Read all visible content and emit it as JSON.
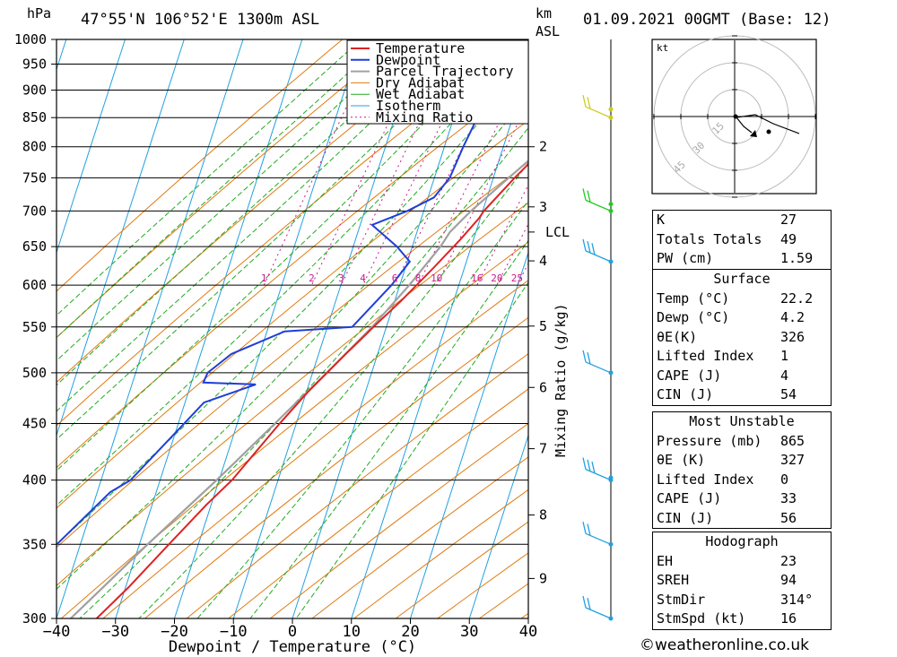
{
  "header": {
    "hpa_unit": "hPa",
    "location": "47°55'N  106°52'E  1300m  ASL",
    "km_unit": "km",
    "asl_unit": "ASL",
    "datetime": "01.09.2021  00GMT  (Base: 12)"
  },
  "chart_data": {
    "type": "line",
    "subtype": "skew-T log-P",
    "xlabel": "Dewpoint / Temperature (°C)",
    "ylabel_left": "hPa",
    "ylabel_right": "Mixing Ratio (g/kg)",
    "x_ticks": [
      -40,
      -30,
      -20,
      -10,
      0,
      10,
      20,
      30,
      40
    ],
    "xlim": [
      -40,
      40
    ],
    "pressure_levels": [
      300,
      350,
      400,
      450,
      500,
      550,
      600,
      650,
      700,
      750,
      800,
      850,
      900,
      950,
      1000
    ],
    "ylim": [
      1000,
      300
    ],
    "km_ticks": [
      {
        "km": 2,
        "p": 800
      },
      {
        "km": 3,
        "p": 706
      },
      {
        "km": 4,
        "p": 631
      },
      {
        "km": 5,
        "p": 551
      },
      {
        "km": 6,
        "p": 485
      },
      {
        "km": 7,
        "p": 427
      },
      {
        "km": 8,
        "p": 372
      },
      {
        "km": 9,
        "p": 326
      }
    ],
    "lcl_label": "LCL",
    "lcl_pressure": 670,
    "mixing_ratio_labels": [
      "1",
      "2",
      "3",
      "4",
      "6",
      "8",
      "10",
      "16",
      "20",
      "25"
    ],
    "mixing_ratio_values": [
      1,
      2,
      3,
      4,
      6,
      8,
      10,
      16,
      20,
      25
    ],
    "legend": [
      "Temperature",
      "Dewpoint",
      "Parcel Trajectory",
      "Dry Adiabat",
      "Wet Adiabat",
      "Isotherm",
      "Mixing Ratio"
    ],
    "legend_position": "top-right of plot",
    "colors": {
      "temperature": "#dd2222",
      "dewpoint": "#1f3fd8",
      "parcel": "#a0a0a0",
      "dry_adiabat": "#e07a10",
      "wet_adiabat": "#22aa22",
      "isotherm": "#22a0e0",
      "mixing_ratio": "#cc1a8a"
    },
    "series": [
      {
        "name": "Temperature",
        "points": [
          [
            865,
            26.8
          ],
          [
            860,
            22.2
          ],
          [
            850,
            21.2
          ],
          [
            800,
            17.2
          ],
          [
            750,
            13.6
          ],
          [
            700,
            10.2
          ],
          [
            690,
            9.8
          ],
          [
            660,
            7.8
          ],
          [
            620,
            4.6
          ],
          [
            580,
            1.0
          ],
          [
            550,
            -2.2
          ],
          [
            540,
            -3.2
          ],
          [
            520,
            -5.4
          ],
          [
            480,
            -9.8
          ],
          [
            450,
            -12.8
          ],
          [
            400,
            -17.8
          ],
          [
            380,
            -20.8
          ],
          [
            350,
            -25.0
          ],
          [
            320,
            -29.5
          ],
          [
            300,
            -33.2
          ]
        ]
      },
      {
        "name": "Dewpoint",
        "points": [
          [
            860,
            4.2
          ],
          [
            850,
            4.0
          ],
          [
            800,
            3.2
          ],
          [
            750,
            2.6
          ],
          [
            720,
            1.0
          ],
          [
            700,
            -2.8
          ],
          [
            680,
            -8.0
          ],
          [
            650,
            -2.6
          ],
          [
            630,
            0.4
          ],
          [
            600,
            -1.4
          ],
          [
            550,
            -5.8
          ],
          [
            545,
            -17.0
          ],
          [
            520,
            -24.8
          ],
          [
            500,
            -27.8
          ],
          [
            490,
            -28.0
          ],
          [
            488,
            -19.0
          ],
          [
            470,
            -26.8
          ],
          [
            450,
            -29.0
          ],
          [
            400,
            -35.0
          ],
          [
            390,
            -37.8
          ],
          [
            350,
            -44.0
          ],
          [
            300,
            -51.2
          ]
        ]
      },
      {
        "name": "Parcel Trajectory",
        "points": [
          [
            850,
            21.5
          ],
          [
            800,
            17.0
          ],
          [
            750,
            12.6
          ],
          [
            700,
            8.0
          ],
          [
            670,
            5.6
          ],
          [
            650,
            4.8
          ],
          [
            600,
            1.6
          ],
          [
            550,
            -2.4
          ],
          [
            500,
            -7.6
          ],
          [
            450,
            -13.6
          ],
          [
            400,
            -20.4
          ],
          [
            350,
            -28.6
          ],
          [
            300,
            -37.6
          ]
        ]
      }
    ]
  },
  "hodograph": {
    "unit": "kt",
    "ring_labels": [
      "15",
      "30",
      "45"
    ]
  },
  "wind_barb_colors": [
    "#22a0e0",
    "#22cc22",
    "#cccc22"
  ],
  "indices": [
    {
      "label": "K",
      "value": "27"
    },
    {
      "label": "Totals Totals",
      "value": "49"
    },
    {
      "label": "PW (cm)",
      "value": "1.59"
    }
  ],
  "surface": {
    "title": "Surface",
    "rows": [
      {
        "label": "Temp (°C)",
        "value": "22.2"
      },
      {
        "label": "Dewp (°C)",
        "value": "4.2"
      },
      {
        "label": "θE(K)",
        "value": "326"
      },
      {
        "label": "Lifted Index",
        "value": "1"
      },
      {
        "label": "CAPE (J)",
        "value": "4"
      },
      {
        "label": "CIN (J)",
        "value": "54"
      }
    ]
  },
  "most_unstable": {
    "title": "Most Unstable",
    "rows": [
      {
        "label": "Pressure (mb)",
        "value": "865"
      },
      {
        "label": "θE (K)",
        "value": "327"
      },
      {
        "label": "Lifted Index",
        "value": "0"
      },
      {
        "label": "CAPE (J)",
        "value": "33"
      },
      {
        "label": "CIN (J)",
        "value": "56"
      }
    ]
  },
  "hodograph_table": {
    "title": "Hodograph",
    "rows": [
      {
        "label": "EH",
        "value": "23"
      },
      {
        "label": "SREH",
        "value": "94"
      },
      {
        "label": "StmDir",
        "value": "314°"
      },
      {
        "label": "StmSpd (kt)",
        "value": "16"
      }
    ]
  },
  "credit": "©weatheronline.co.uk"
}
